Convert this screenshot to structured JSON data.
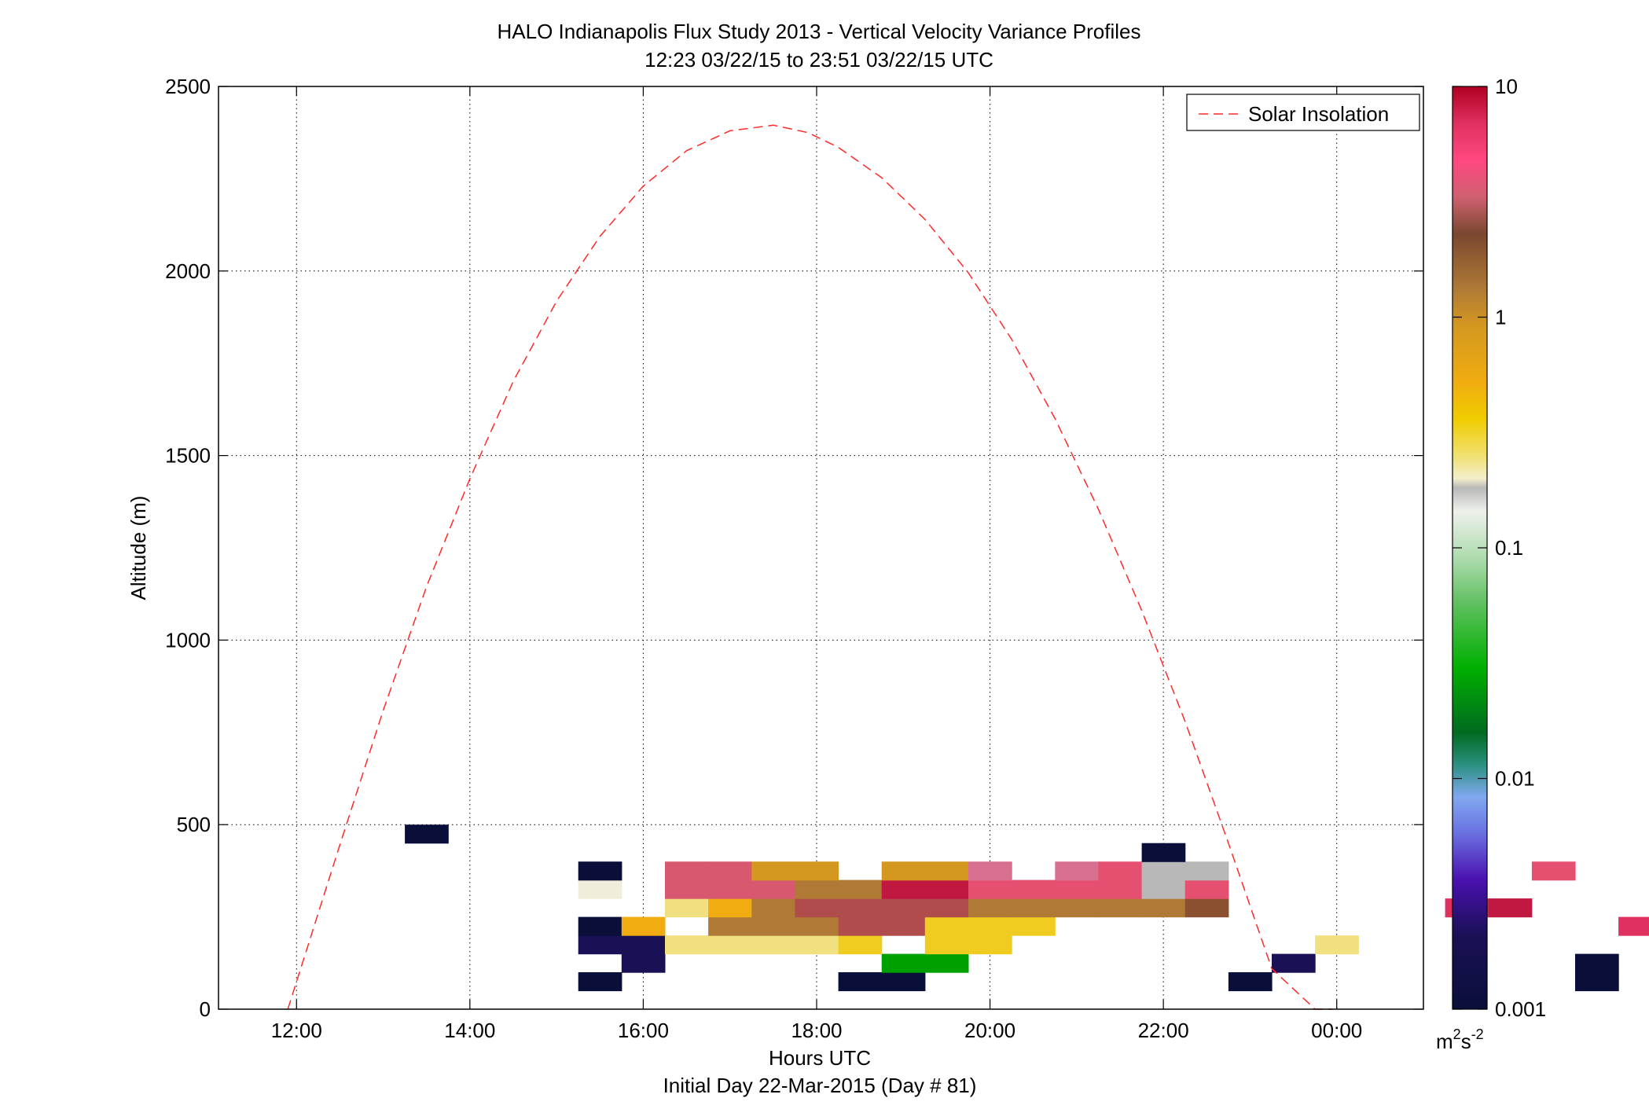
{
  "chart_data": {
    "type": "heatmap",
    "title": "HALO Indianapolis Flux Study 2013 - Vertical Velocity Variance Profiles",
    "subtitle": "12:23 03/22/15 to 23:51 03/22/15  UTC",
    "xlabel": "Hours UTC",
    "xlabel2": "Initial Day 22-Mar-2015 (Day # 81)",
    "ylabel": "Altitude (m)",
    "xlim": [
      11.1,
      25.0
    ],
    "ylim": [
      0,
      2500
    ],
    "x_ticks": [
      12,
      14,
      16,
      18,
      20,
      22,
      24
    ],
    "x_tick_labels": [
      "12:00",
      "14:00",
      "16:00",
      "18:00",
      "20:00",
      "22:00",
      "00:00"
    ],
    "y_ticks": [
      0,
      500,
      1000,
      1500,
      2000,
      2500
    ],
    "y_tick_labels": [
      "0",
      "500",
      "1000",
      "1500",
      "2000",
      "2500"
    ],
    "grid": true,
    "legend": {
      "position": "top-right",
      "entries": [
        "Solar Insolation"
      ]
    },
    "colorbar": {
      "scale": "log",
      "range": [
        0.001,
        10
      ],
      "tick_values": [
        0.001,
        0.01,
        0.1,
        1,
        10
      ],
      "tick_labels": [
        "0.001",
        "0.01",
        "0.1",
        "1",
        "10"
      ],
      "unit_base": "m",
      "unit_sup1": "2",
      "unit_mid": "s",
      "unit_sup2": "-2"
    },
    "cells": {
      "time_start": 12.25,
      "time_step": 0.5,
      "alt_start": 50,
      "alt_step": 50,
      "rows_bottom_up": [
        "------1-----11-------1-------1--1--------21",
        "-------2-----88-------2------1--2-----8----",
        "------22dddde|ee-------d-------fdeeef",
        "------1f-hhhjjeee-------------mddm-kfgh",
        "--------dfhjjjjhhhhhi-----mn-------fffg",
        "------c-kkkhhnnoooopo-------------",
        "------1-kkgg-ggq-qopp-------o-----",
        "-------------------1",
        "--1"
      ]
    },
    "solar_insolation": {
      "label": "Solar Insolation",
      "x": [
        11.9,
        12.5,
        13.0,
        13.5,
        14.0,
        14.5,
        15.0,
        15.5,
        16.0,
        16.5,
        17.0,
        17.5,
        17.9,
        18.25,
        18.75,
        19.25,
        19.75,
        20.25,
        20.75,
        21.25,
        21.75,
        22.25,
        22.75,
        23.25,
        23.75,
        23.95
      ],
      "y": [
        0,
        445,
        809,
        1145,
        1437,
        1701,
        1918,
        2094,
        2230,
        2326,
        2380,
        2395,
        2375,
        2335,
        2253,
        2140,
        1995,
        1815,
        1600,
        1355,
        1080,
        780,
        450,
        110,
        0,
        0
      ]
    }
  }
}
